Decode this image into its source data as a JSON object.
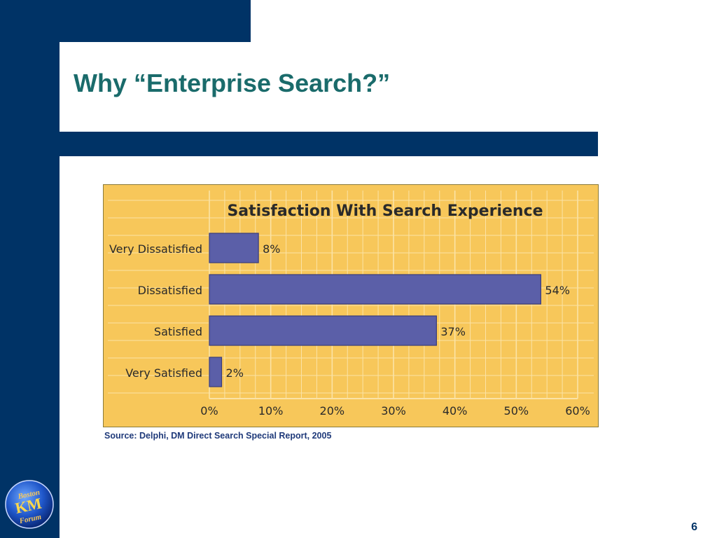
{
  "slide": {
    "title": "Why “Enterprise Search?”",
    "source": "Source:  Delphi, DM Direct Search Special Report, 2005",
    "page_number": "6",
    "logo_text": [
      "Boston",
      "KM",
      "Forum"
    ]
  },
  "colors": {
    "navy": "#003366",
    "title_teal": "#1a6b6b",
    "chart_background": "#f7c75a",
    "bar_fill": "#5b5fa8",
    "chart_text": "#2a2a2a"
  },
  "chart_data": {
    "type": "bar",
    "orientation": "horizontal",
    "title": "Satisfaction With Search Experience",
    "categories": [
      "Very Dissatisfied",
      "Dissatisfied",
      "Satisfied",
      "Very Satisfied"
    ],
    "values": [
      8,
      54,
      37,
      2
    ],
    "value_labels": [
      "8%",
      "54%",
      "37%",
      "2%"
    ],
    "xlim": [
      0,
      60
    ],
    "x_ticks": [
      "0%",
      "10%",
      "20%",
      "30%",
      "40%",
      "50%",
      "60%"
    ],
    "xlabel": "",
    "ylabel": "",
    "grid": true
  }
}
